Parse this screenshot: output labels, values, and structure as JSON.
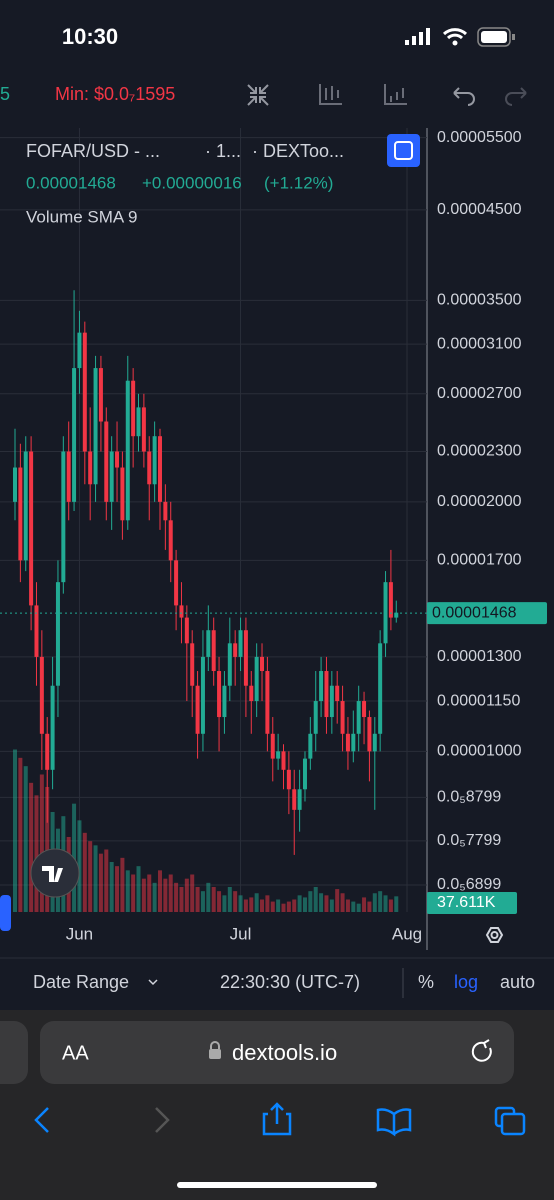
{
  "status_bar": {
    "time": "10:30"
  },
  "toolbar": {
    "partial": "5",
    "min_label": "Min: $0.0₇1595"
  },
  "chart_legend": {
    "symbol": "FOFAR/USD - ...",
    "interval": "· 1...",
    "source": "· DEXToo...",
    "price": "0.00001468",
    "change": "+0.00000016",
    "change_pct": "(+1.12%)",
    "indicator": "Volume SMA 9"
  },
  "chart_data": {
    "type": "candlestick",
    "log": true,
    "grid": true,
    "up_color": "#22ab94",
    "down_color": "#f23645",
    "categories": [
      null,
      null,
      null,
      null,
      null,
      null,
      null,
      null,
      null,
      null,
      null,
      null,
      "Jun",
      null,
      null,
      null,
      null,
      null,
      null,
      null,
      null,
      null,
      null,
      null,
      null,
      null,
      null,
      null,
      null,
      null,
      null,
      null,
      null,
      null,
      null,
      null,
      null,
      null,
      null,
      null,
      null,
      null,
      "Jul",
      null,
      null,
      null,
      null,
      null,
      null,
      null,
      null,
      null,
      null,
      null,
      null,
      null,
      null,
      null,
      null,
      null,
      null,
      null,
      null,
      null,
      null,
      null,
      null,
      null,
      null,
      null,
      null,
      null,
      null,
      "Aug"
    ],
    "open": [
      2e-05,
      2.2e-05,
      1.7e-05,
      2.3e-05,
      1.5e-05,
      1.3e-05,
      1.05e-05,
      9.5e-06,
      1.2e-05,
      1.6e-05,
      2.3e-05,
      2e-05,
      2.9e-05,
      3.2e-05,
      2.3e-05,
      2.1e-05,
      2.9e-05,
      2.5e-05,
      2e-05,
      2.3e-05,
      2.2e-05,
      1.9e-05,
      2.8e-05,
      2.4e-05,
      2.6e-05,
      2.3e-05,
      2.1e-05,
      2.4e-05,
      2e-05,
      1.9e-05,
      1.7e-05,
      1.5e-05,
      1.45e-05,
      1.35e-05,
      1.2e-05,
      1.05e-05,
      1.3e-05,
      1.4e-05,
      1.25e-05,
      1.1e-05,
      1.2e-05,
      1.35e-05,
      1.3e-05,
      1.4e-05,
      1.2e-05,
      1.15e-05,
      1.3e-05,
      1.25e-05,
      1.05e-05,
      9.8e-06,
      1e-05,
      9.5e-06,
      9e-06,
      8.5e-06,
      9e-06,
      9.8e-06,
      1.05e-05,
      1.15e-05,
      1.25e-05,
      1.1e-05,
      1.2e-05,
      1.15e-05,
      1.05e-05,
      1e-05,
      1.05e-05,
      1.15e-05,
      1.1e-05,
      1e-05,
      1.05e-05,
      1.35e-05,
      1.6e-05,
      1.45e-05,
      null,
      null
    ],
    "high": [
      2.45e-05,
      2.35e-05,
      2.4e-05,
      2.4e-05,
      1.6e-05,
      1.4e-05,
      1.1e-05,
      1.3e-05,
      1.7e-05,
      2.4e-05,
      2.5e-05,
      3.6e-05,
      3.4e-05,
      3.3e-05,
      2.6e-05,
      3e-05,
      3e-05,
      2.6e-05,
      2.4e-05,
      2.5e-05,
      2.3e-05,
      3e-05,
      2.9e-05,
      2.7e-05,
      2.7e-05,
      2.4e-05,
      2.5e-05,
      2.45e-05,
      2.1e-05,
      2e-05,
      1.75e-05,
      1.6e-05,
      1.5e-05,
      1.4e-05,
      1.25e-05,
      1.4e-05,
      1.5e-05,
      1.45e-05,
      1.3e-05,
      1.25e-05,
      1.45e-05,
      1.4e-05,
      1.45e-05,
      1.45e-05,
      1.25e-05,
      1.35e-05,
      1.35e-05,
      1.3e-05,
      1.1e-05,
      1.05e-05,
      1.02e-05,
      1e-05,
      9.5e-06,
      9.5e-06,
      1e-05,
      1.1e-05,
      1.25e-05,
      1.3e-05,
      1.3e-05,
      1.25e-05,
      1.25e-05,
      1.2e-05,
      1.1e-05,
      1.12e-05,
      1.2e-05,
      1.18e-05,
      1.12e-05,
      1.1e-05,
      1.4e-05,
      1.65e-05,
      1.75e-05,
      1.52e-05,
      null,
      null
    ],
    "low": [
      1.9e-05,
      1.6e-05,
      1.65e-05,
      1.4e-05,
      1.2e-05,
      9.5e-06,
      8.2e-06,
      9e-06,
      1.1e-05,
      1.55e-05,
      1.9e-05,
      1.95e-05,
      2.7e-05,
      2.1e-05,
      1.9e-05,
      2e-05,
      2.3e-05,
      1.9e-05,
      1.85e-05,
      2e-05,
      1.8e-05,
      1.85e-05,
      2.2e-05,
      2.3e-05,
      2.2e-05,
      1.9e-05,
      2e-05,
      1.85e-05,
      1.75e-05,
      1.6e-05,
      1.4e-05,
      1.35e-05,
      1.15e-05,
      1.1e-05,
      9.8e-06,
      1e-05,
      1.25e-05,
      1.2e-05,
      1e-05,
      1.05e-05,
      1.15e-05,
      1.2e-05,
      1.25e-05,
      1.1e-05,
      1.05e-05,
      1.1e-05,
      1.15e-05,
      1e-05,
      9.2e-06,
      9.5e-06,
      9e-06,
      8.4e-06,
      7.5e-06,
      8e-06,
      8.7e-06,
      9.5e-06,
      1e-05,
      1.1e-05,
      1.05e-05,
      1.05e-05,
      1.08e-05,
      1e-05,
      9.5e-06,
      9.7e-06,
      1e-05,
      1.02e-05,
      9.2e-06,
      8.5e-06,
      1e-05,
      1.3e-05,
      1.4e-05,
      1.43e-05,
      null,
      null
    ],
    "close": [
      2.2e-05,
      1.7e-05,
      2.3e-05,
      1.5e-05,
      1.3e-05,
      1.05e-05,
      9.5e-06,
      1.2e-05,
      1.6e-05,
      2.3e-05,
      2e-05,
      2.9e-05,
      3.2e-05,
      2.3e-05,
      2.1e-05,
      2.9e-05,
      2.5e-05,
      2e-05,
      2.3e-05,
      2.2e-05,
      1.9e-05,
      2.8e-05,
      2.4e-05,
      2.6e-05,
      2.3e-05,
      2.1e-05,
      2.4e-05,
      2e-05,
      1.9e-05,
      1.7e-05,
      1.5e-05,
      1.45e-05,
      1.35e-05,
      1.2e-05,
      1.05e-05,
      1.3e-05,
      1.4e-05,
      1.25e-05,
      1.1e-05,
      1.2e-05,
      1.35e-05,
      1.3e-05,
      1.4e-05,
      1.2e-05,
      1.15e-05,
      1.3e-05,
      1.25e-05,
      1.05e-05,
      9.8e-06,
      1e-05,
      9.5e-06,
      9e-06,
      8.5e-06,
      9e-06,
      9.8e-06,
      1.05e-05,
      1.15e-05,
      1.25e-05,
      1.1e-05,
      1.2e-05,
      1.15e-05,
      1.05e-05,
      1e-05,
      1.05e-05,
      1.15e-05,
      1.1e-05,
      1e-05,
      1.05e-05,
      1.35e-05,
      1.6e-05,
      1.45e-05,
      1.47e-05,
      null,
      null
    ],
    "volume": [
      390,
      370,
      350,
      310,
      280,
      330,
      300,
      240,
      200,
      230,
      180,
      260,
      220,
      190,
      170,
      160,
      140,
      150,
      120,
      110,
      130,
      100,
      90,
      110,
      80,
      90,
      70,
      100,
      80,
      90,
      70,
      60,
      80,
      90,
      60,
      50,
      70,
      60,
      50,
      40,
      60,
      50,
      40,
      30,
      35,
      45,
      30,
      40,
      25,
      30,
      20,
      25,
      30,
      40,
      35,
      50,
      60,
      45,
      40,
      30,
      55,
      45,
      30,
      25,
      20,
      35,
      25,
      45,
      50,
      40,
      30,
      37.611,
      null,
      null
    ],
    "volume_ylim": [
      0,
      420
    ],
    "ylim": [
      6.4e-06,
      5.65e-05
    ],
    "yticks": [
      {
        "value": 5.5e-05,
        "label": "0.00005500"
      },
      {
        "value": 4.5e-05,
        "label": "0.00004500"
      },
      {
        "value": 3.5e-05,
        "label": "0.00003500"
      },
      {
        "value": 3.1e-05,
        "label": "0.00003100"
      },
      {
        "value": 2.7e-05,
        "label": "0.00002700"
      },
      {
        "value": 2.3e-05,
        "label": "0.00002300"
      },
      {
        "value": 2e-05,
        "label": "0.00002000"
      },
      {
        "value": 1.7e-05,
        "label": "0.00001700"
      },
      {
        "value": 1.3e-05,
        "label": "0.00001300"
      },
      {
        "value": 1.15e-05,
        "label": "0.00001150"
      },
      {
        "value": 1e-05,
        "label": "0.00001000"
      },
      {
        "value": 8.799e-06,
        "label": "0.0₅8799"
      },
      {
        "value": 7.799e-06,
        "label": "0.0₅7799"
      },
      {
        "value": 6.899e-06,
        "label": "0.0₅6899"
      }
    ],
    "last_price": {
      "value": 1.468e-05,
      "label": "0.00001468"
    },
    "last_volume": {
      "value": 37.611,
      "label": "37.611K"
    }
  },
  "bottom_bar": {
    "date_range": "Date Range",
    "time": "22:30:30 (UTC-7)",
    "percent": "%",
    "log": "log",
    "auto": "auto"
  },
  "browser": {
    "aa": "AA",
    "url": "dextools.io"
  }
}
